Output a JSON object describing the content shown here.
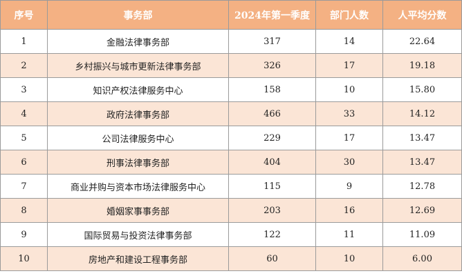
{
  "table": {
    "headers": [
      "序号",
      "事务部",
      "2024年第一季度",
      "部门人数",
      "人平均分数"
    ],
    "rows": [
      [
        "1",
        "金融法律事务部",
        "317",
        "14",
        "22.64"
      ],
      [
        "2",
        "乡村振兴与城市更新法律事务部",
        "326",
        "17",
        "19.18"
      ],
      [
        "3",
        "知识产权法律服务中心",
        "158",
        "10",
        "15.80"
      ],
      [
        "4",
        "政府法律事务部",
        "466",
        "33",
        "14.12"
      ],
      [
        "5",
        "公司法律服务中心",
        "229",
        "17",
        "13.47"
      ],
      [
        "6",
        "刑事法律事务部",
        "404",
        "30",
        "13.47"
      ],
      [
        "7",
        "商业并购与资本市场法律服务中心",
        "115",
        "9",
        "12.78"
      ],
      [
        "8",
        "婚姻家事事务部",
        "203",
        "16",
        "12.69"
      ],
      [
        "9",
        "国际贸易与投资法律事务部",
        "122",
        "11",
        "11.09"
      ],
      [
        "10",
        "房地产和建设工程事务部",
        "60",
        "10",
        "6.00"
      ]
    ]
  },
  "colors": {
    "header_bg": "#f4b183",
    "header_text": "#ffffff",
    "stripe_bg": "#fbe5d6",
    "border": "#9a9a9a"
  }
}
